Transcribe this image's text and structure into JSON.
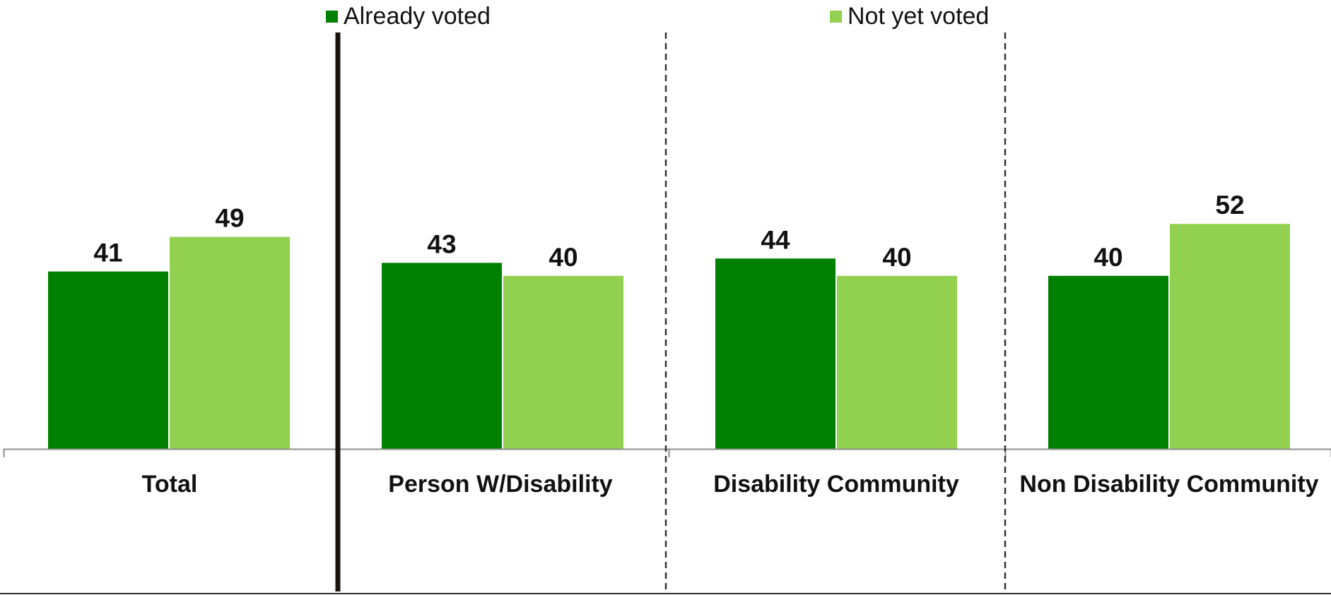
{
  "chart_data": {
    "type": "bar",
    "categories": [
      "Total",
      "Person W/Disability",
      "Disability Community",
      "Non Disability Community"
    ],
    "series": [
      {
        "name": "Already voted",
        "values": [
          41,
          43,
          44,
          40
        ],
        "color": "#008000"
      },
      {
        "name": "Not yet voted",
        "values": [
          49,
          40,
          40,
          52
        ],
        "color": "#92d050"
      }
    ],
    "ylim": [
      0,
      100
    ],
    "grid": false,
    "data_labels": true,
    "legend_position": "top",
    "title": "",
    "xlabel": "",
    "ylabel": ""
  }
}
